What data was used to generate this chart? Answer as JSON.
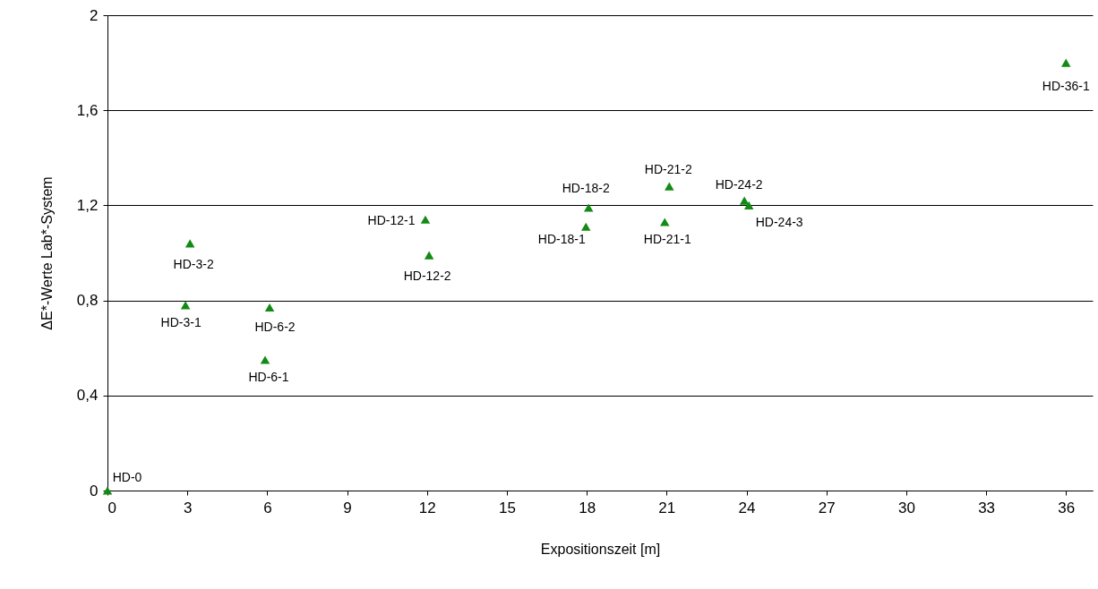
{
  "chart_data": {
    "type": "scatter",
    "xlabel": "Expositionszeit [m]",
    "ylabel": "ΔE*-Werte Lab*-System",
    "x": [
      0,
      2.93,
      3.1,
      5.92,
      6.09,
      11.94,
      12.08,
      17.97,
      18.07,
      20.93,
      21.1,
      23.92,
      24.09,
      36
    ],
    "series": [
      {
        "color": "#138a13",
        "values": [
          0,
          0.78,
          1.04,
          0.55,
          0.77,
          1.14,
          0.99,
          1.11,
          1.19,
          1.13,
          1.28,
          1.22,
          1.2,
          1.8
        ]
      }
    ],
    "xlim": [
      0,
      37
    ],
    "xticks": [
      0,
      3,
      6,
      9,
      12,
      15,
      18,
      21,
      24,
      27,
      30,
      33,
      36
    ],
    "ylim": [
      0,
      2
    ],
    "yticks": [
      0,
      {
        "value": 0.4,
        "label": "0,4"
      },
      {
        "value": 0.8,
        "label": "0,8"
      },
      {
        "value": 1.2,
        "label": "1,2"
      },
      {
        "value": 1.6,
        "label": "1,6"
      },
      2
    ],
    "grid": "y",
    "marker": "triangle",
    "annotations": [
      {
        "text": "HD-0",
        "x": 0,
        "y": 0
      },
      {
        "text": "HD-3-1",
        "x": 2.93,
        "y": 0.78
      },
      {
        "text": "HD-3-2",
        "x": 3.1,
        "y": 1.04
      },
      {
        "text": "HD-6-1",
        "x": 5.92,
        "y": 0.55
      },
      {
        "text": "HD-6-2",
        "x": 6.09,
        "y": 0.77
      },
      {
        "text": "HD-12-1",
        "x": 11.94,
        "y": 1.14
      },
      {
        "text": "HD-12-2",
        "x": 12.08,
        "y": 0.99
      },
      {
        "text": "HD-18-1",
        "x": 17.97,
        "y": 1.11
      },
      {
        "text": "HD-18-2",
        "x": 18.07,
        "y": 1.19
      },
      {
        "text": "HD-21-1",
        "x": 20.93,
        "y": 1.13
      },
      {
        "text": "HD-21-2",
        "x": 21.1,
        "y": 1.28
      },
      {
        "text": "HD-24-2",
        "x": 23.92,
        "y": 1.22
      },
      {
        "text": "HD-24-3",
        "x": 24.09,
        "y": 1.2
      },
      {
        "text": "HD-36-1",
        "x": 36,
        "y": 1.8
      }
    ]
  }
}
